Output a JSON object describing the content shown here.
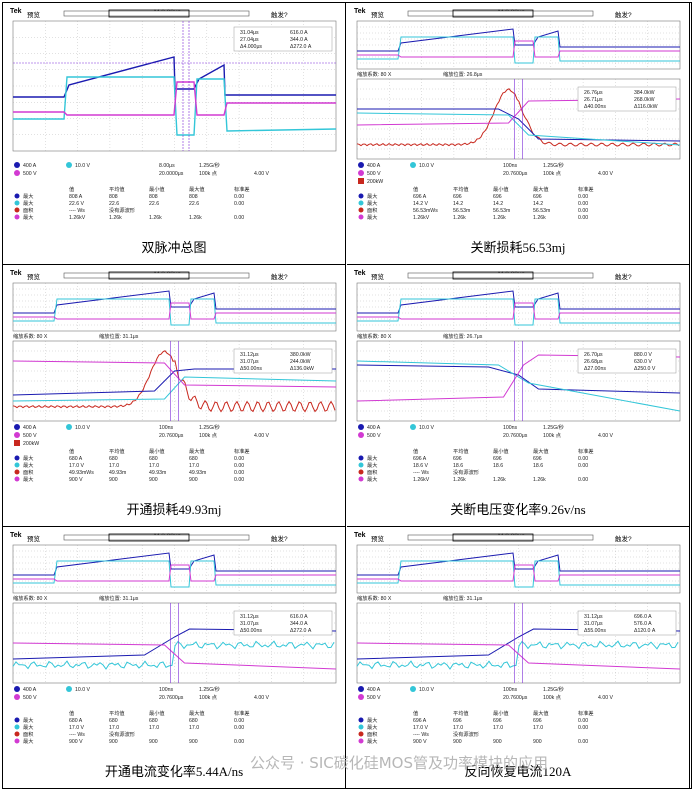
{
  "panels": [
    {
      "caption": "双脉冲总图",
      "header": {
        "brand": "Tek",
        "mode": "预览",
        "timebase": "M 8.00μs",
        "trigger": "触发?"
      },
      "cursor": [
        "31.04μs",
        "616.0 A",
        "27.04μs",
        "344.0 A",
        "Δ4.000μs",
        "Δ272.0 A"
      ],
      "settings": [
        "400 A",
        "10.0 V",
        "500 V",
        "8.00μs",
        "1.25G/秒",
        "20.0000μs",
        "100k 点",
        "4.00 V"
      ],
      "table": {
        "headers": [
          "值",
          "平均值",
          "最小值",
          "最大值",
          "标准差"
        ],
        "rows": [
          [
            "最大",
            "808 A",
            "808",
            "808",
            "808",
            "0.00"
          ],
          [
            "最大",
            "22.6 V",
            "22.6",
            "22.6",
            "22.6",
            "0.00"
          ],
          [
            "面积",
            "---- Ws",
            "没有源波形",
            "",
            "",
            ""
          ],
          [
            "最大",
            "1.26kV",
            "1.26k",
            "1.26k",
            "1.26k",
            "0.00"
          ]
        ]
      }
    },
    {
      "caption": "关断损耗56.53mj",
      "header": {
        "brand": "Tek",
        "mode": "预览",
        "timebase": "M 8.00μs",
        "trigger": "触发?"
      },
      "zoom": [
        "缩放系数: 80 X",
        "缩放位置: 26.8μs"
      ],
      "cursor": [
        "26.76μs",
        "384.0kW",
        "26.71μs",
        "268.0kW",
        "Δ40.00ns",
        "Δ116.0kW"
      ],
      "settings": [
        "400 A",
        "10.0 V",
        "500 V",
        "200kW",
        "100ns",
        "1.25G/秒",
        "20.7600μs",
        "100k 点",
        "4.00 V"
      ],
      "table": {
        "headers": [
          "值",
          "平均值",
          "最小值",
          "最大值",
          "标准差"
        ],
        "rows": [
          [
            "最大",
            "696 A",
            "696",
            "696",
            "696",
            "0.00"
          ],
          [
            "最大",
            "14.2 V",
            "14.2",
            "14.2",
            "14.2",
            "0.00"
          ],
          [
            "面积",
            "56.53mWs",
            "56.53m",
            "56.53m",
            "56.53m",
            "0.00"
          ],
          [
            "最大",
            "1.26kV",
            "1.26k",
            "1.26k",
            "1.26k",
            "0.00"
          ]
        ]
      }
    },
    {
      "caption": "开通损耗49.93mj",
      "header": {
        "brand": "Tek",
        "mode": "预览",
        "timebase": "M 8.00μs",
        "trigger": "触发?"
      },
      "zoom": [
        "缩放系数: 80 X",
        "缩放位置: 31.1μs"
      ],
      "cursor": [
        "31.12μs",
        "380.0kW",
        "31.07μs",
        "244.0kW",
        "Δ50.00ns",
        "Δ136.0kW"
      ],
      "settings": [
        "400 A",
        "10.0 V",
        "500 V",
        "200kW",
        "100ns",
        "1.25G/秒",
        "20.7600μs",
        "100k 点",
        "4.00 V"
      ],
      "table": {
        "headers": [
          "值",
          "平均值",
          "最小值",
          "最大值",
          "标准差"
        ],
        "rows": [
          [
            "最大",
            "680 A",
            "680",
            "680",
            "680",
            "0.00"
          ],
          [
            "最大",
            "17.0 V",
            "17.0",
            "17.0",
            "17.0",
            "0.00"
          ],
          [
            "面积",
            "49.93mWs",
            "49.93m",
            "49.93m",
            "49.93m",
            "0.00"
          ],
          [
            "最大",
            "900 V",
            "900",
            "900",
            "900",
            "0.00"
          ]
        ]
      }
    },
    {
      "caption": "关断电压变化率9.26v/ns",
      "header": {
        "brand": "Tek",
        "mode": "预览",
        "timebase": "M 8.00μs",
        "trigger": "触发?"
      },
      "zoom": [
        "缩放系数: 80 X",
        "缩放位置: 26.7μs"
      ],
      "cursor": [
        "26.70μs",
        "880.0 V",
        "26.68μs",
        "630.0 V",
        "Δ27.00ns",
        "Δ250.0 V"
      ],
      "settings": [
        "400 A",
        "10.0 V",
        "500 V",
        "100ns",
        "1.25G/秒",
        "20.7600μs",
        "100k 点",
        "4.00 V"
      ],
      "table": {
        "headers": [
          "值",
          "平均值",
          "最小值",
          "最大值",
          "标准差"
        ],
        "rows": [
          [
            "最大",
            "696 A",
            "696",
            "696",
            "696",
            "0.00"
          ],
          [
            "最大",
            "18.6 V",
            "18.6",
            "18.6",
            "18.6",
            "0.00"
          ],
          [
            "面积",
            "---- Ws",
            "没有源波形",
            "",
            "",
            ""
          ],
          [
            "最大",
            "1.26kV",
            "1.26k",
            "1.26k",
            "1.26k",
            "0.00"
          ]
        ]
      }
    },
    {
      "caption": "开通电流变化率5.44A/ns",
      "header": {
        "brand": "Tek",
        "mode": "预览",
        "timebase": "M 8.00μs",
        "trigger": "触发?"
      },
      "zoom": [
        "缩放系数: 80 X",
        "缩放位置: 31.1μs"
      ],
      "cursor": [
        "31.12μs",
        "616.0 A",
        "31.07μs",
        "344.0 A",
        "Δ50.00ns",
        "Δ272.0 A"
      ],
      "settings": [
        "400 A",
        "10.0 V",
        "500 V",
        "100ns",
        "1.25G/秒",
        "20.7600μs",
        "100k 点",
        "4.00 V"
      ],
      "table": {
        "headers": [
          "值",
          "平均值",
          "最小值",
          "最大值",
          "标准差"
        ],
        "rows": [
          [
            "最大",
            "680 A",
            "680",
            "680",
            "680",
            "0.00"
          ],
          [
            "最大",
            "17.0 V",
            "17.0",
            "17.0",
            "17.0",
            "0.00"
          ],
          [
            "面积",
            "---- Ws",
            "没有源波形",
            "",
            "",
            ""
          ],
          [
            "最大",
            "900 V",
            "900",
            "900",
            "900",
            "0.00"
          ]
        ]
      }
    },
    {
      "caption": "反向恢复电流120A",
      "header": {
        "brand": "Tek",
        "mode": "预览",
        "timebase": "M 8.00μs",
        "trigger": "触发?"
      },
      "zoom": [
        "缩放系数: 80 X",
        "缩放位置: 31.1μs"
      ],
      "cursor": [
        "31.12μs",
        "696.0 A",
        "31.07μs",
        "576.0 A",
        "Δ55.00ns",
        "Δ120.0 A"
      ],
      "settings": [
        "400 A",
        "10.0 V",
        "500 V",
        "100ns",
        "1.25G/秒",
        "20.7600μs",
        "100k 点",
        "4.00 V"
      ],
      "table": {
        "headers": [
          "值",
          "平均值",
          "最小值",
          "最大值",
          "标准差"
        ],
        "rows": [
          [
            "最大",
            "696 A",
            "696",
            "696",
            "696",
            "0.00"
          ],
          [
            "最大",
            "17.0 V",
            "17.0",
            "17.0",
            "17.0",
            "0.00"
          ],
          [
            "面积",
            "---- Ws",
            "没有源波形",
            "",
            "",
            ""
          ],
          [
            "最大",
            "900 V",
            "900",
            "900",
            "900",
            "0.00"
          ]
        ]
      }
    }
  ],
  "watermark": "公众号 · SIC碳化硅MOS管及功率模块的应用",
  "colors": {
    "ch1": "#1a1ab0",
    "ch2": "#33c6d8",
    "ch3": "#d23ad2",
    "math": "#c8281e",
    "grid": "#9a9a9a",
    "cursor": "#7c2bd8"
  },
  "chart_data": [
    {
      "type": "line",
      "title": "双脉冲总图",
      "series": [
        {
          "name": "Ch1"
        },
        {
          "name": "Ch2"
        },
        {
          "name": "Ch3"
        }
      ]
    },
    {
      "type": "line",
      "title": "关断损耗56.53mj",
      "series": [
        {
          "name": "Ch1"
        },
        {
          "name": "Ch2"
        },
        {
          "name": "Ch3"
        },
        {
          "name": "M"
        }
      ]
    },
    {
      "type": "line",
      "title": "开通损耗49.93mj",
      "series": [
        {
          "name": "Ch1"
        },
        {
          "name": "Ch2"
        },
        {
          "name": "Ch3"
        },
        {
          "name": "M"
        }
      ]
    },
    {
      "type": "line",
      "title": "关断电压变化率9.26v/ns",
      "series": [
        {
          "name": "Ch1"
        },
        {
          "name": "Ch2"
        },
        {
          "name": "Ch3"
        }
      ]
    },
    {
      "type": "line",
      "title": "开通电流变化率5.44A/ns",
      "series": [
        {
          "name": "Ch1"
        },
        {
          "name": "Ch2"
        },
        {
          "name": "Ch3"
        }
      ]
    },
    {
      "type": "line",
      "title": "反向恢复电流120A",
      "series": [
        {
          "name": "Ch1"
        },
        {
          "name": "Ch2"
        },
        {
          "name": "Ch3"
        }
      ]
    }
  ]
}
